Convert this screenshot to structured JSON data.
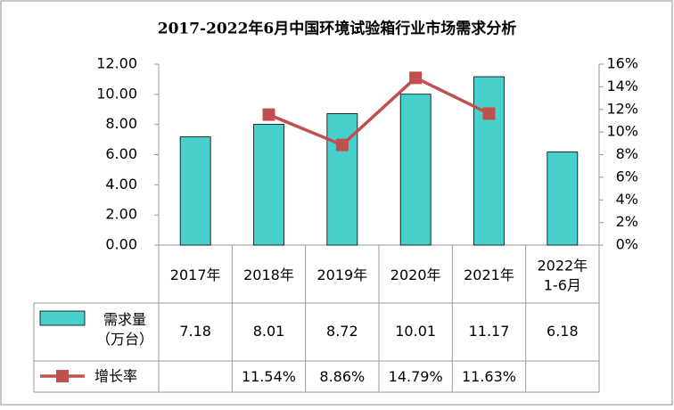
{
  "chart_data": {
    "type": "bar-line-table",
    "title": "2017-2022年6月中国环境试验箱行业市场需求分析",
    "categories": [
      "2017年",
      "2018年",
      "2019年",
      "2020年",
      "2021年",
      "2022年\n1-6月"
    ],
    "series": [
      {
        "name": "需求量\n（万台）",
        "type": "bar",
        "color": "#48d1cc",
        "values": [
          7.18,
          8.01,
          8.72,
          10.01,
          11.17,
          6.18
        ]
      },
      {
        "name": "增长率",
        "type": "line",
        "axis": "y2",
        "color": "#c0504d",
        "values": [
          null,
          11.54,
          8.86,
          14.79,
          11.63,
          null
        ],
        "value_labels": [
          null,
          "11.54%",
          "8.86%",
          "14.79%",
          "11.63%",
          null
        ]
      }
    ],
    "ylim": [
      0,
      12
    ],
    "yticks": [
      {
        "value": 0,
        "label": "0.00"
      },
      {
        "value": 2,
        "label": "2.00"
      },
      {
        "value": 4,
        "label": "4.00"
      },
      {
        "value": 6,
        "label": "6.00"
      },
      {
        "value": 8,
        "label": "8.00"
      },
      {
        "value": 10,
        "label": "10.00"
      },
      {
        "value": 12,
        "label": "12.00"
      }
    ],
    "y2lim": [
      0,
      16
    ],
    "y2ticks": [
      {
        "value": 0,
        "label": "0%"
      },
      {
        "value": 2,
        "label": "2%"
      },
      {
        "value": 4,
        "label": "4%"
      },
      {
        "value": 6,
        "label": "6%"
      },
      {
        "value": 8,
        "label": "8%"
      },
      {
        "value": 10,
        "label": "10%"
      },
      {
        "value": 12,
        "label": "12%"
      },
      {
        "value": 14,
        "label": "14%"
      },
      {
        "value": 16,
        "label": "16%"
      }
    ]
  }
}
